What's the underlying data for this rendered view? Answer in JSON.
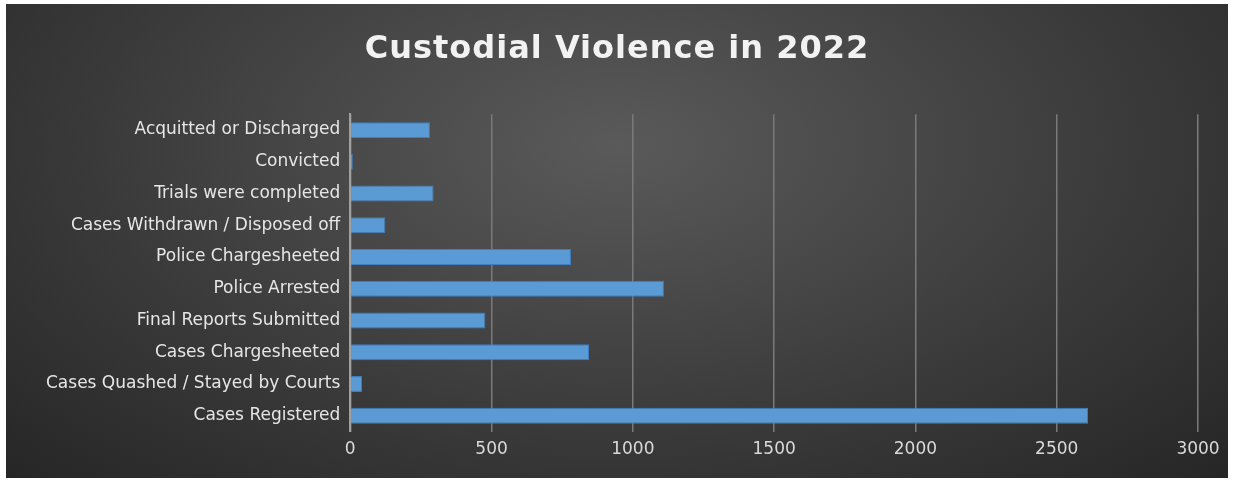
{
  "chart_data": {
    "type": "bar",
    "orientation": "horizontal",
    "title": "Custodial Violence in 2022",
    "categories": [
      "Acquitted or Discharged",
      "Convicted",
      "Trials were completed",
      "Cases Withdrawn / Disposed off",
      "Police Chargesheeted",
      "Police Arrested",
      "Final Reports Submitted",
      "Cases Chargesheeted",
      "Cases Quashed / Stayed by Courts",
      "Cases Registered"
    ],
    "values": [
      282,
      9,
      295,
      124,
      781,
      1110,
      478,
      845,
      42,
      2611
    ],
    "color": "#5b9bd5",
    "xlim": [
      0,
      3000
    ],
    "xticks": [
      0,
      500,
      1000,
      1500,
      2000,
      2500,
      3000
    ],
    "grid": "x",
    "legend": false
  }
}
